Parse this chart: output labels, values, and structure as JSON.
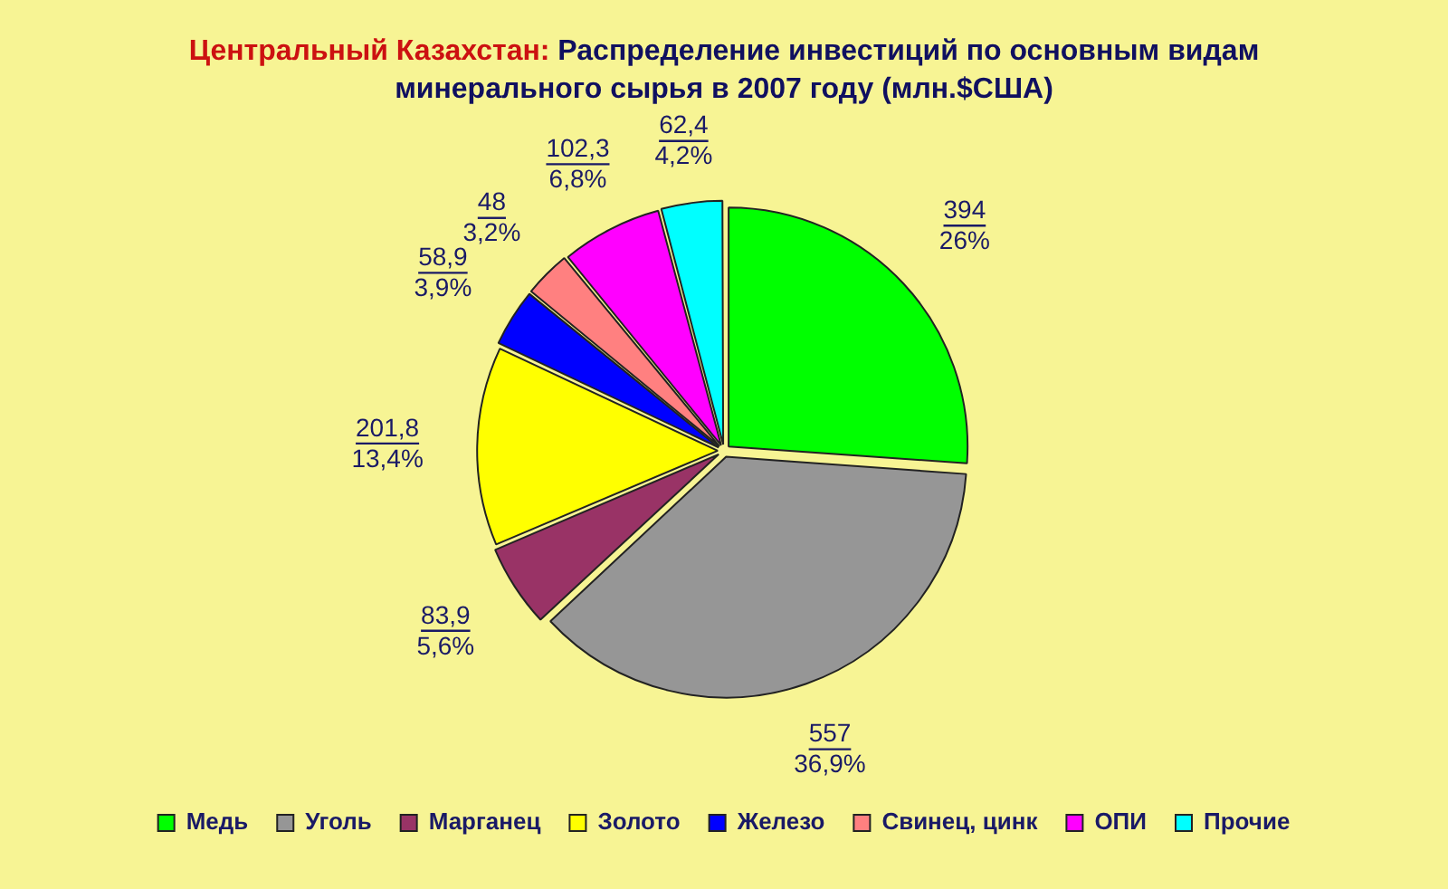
{
  "chart_data": {
    "type": "pie",
    "title": "Центральный Казахстан: Распределение инвестиций по основным видам минерального сырья в 2007 году (млн.$США)",
    "categories": [
      "Медь",
      "Уголь",
      "Марганец",
      "Золото",
      "Железо",
      "Свинец, цинк",
      "ОПИ",
      "Прочие"
    ],
    "values": [
      394,
      557,
      83.9,
      201.8,
      58.9,
      48,
      102.3,
      62.4
    ],
    "colors": [
      "#00ff00",
      "#969696",
      "#993366",
      "#ffff00",
      "#0000ff",
      "#ff8080",
      "#ff00ff",
      "#00ffff"
    ],
    "value_labels": [
      "394\n26%",
      "557\n36,9%",
      "83,9\n5,6%",
      "201,8\n13,4%",
      "58,9\n3,9%",
      "48\n3,2%",
      "102,3\n6,8%",
      "62,4\n4,2%"
    ],
    "legend": "bottom"
  }
}
